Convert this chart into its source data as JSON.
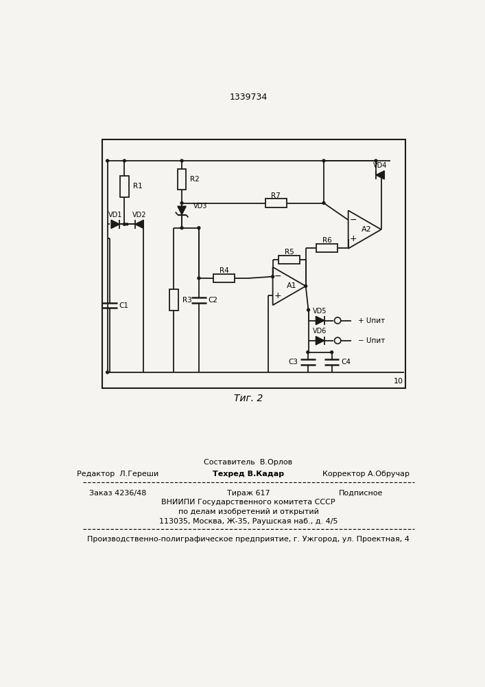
{
  "patent_number": "1339734",
  "fig_label": "Τиг. 2",
  "page_number": "10",
  "bg_color": "#f5f4f0",
  "box_color": "#1a1a1a",
  "line_color": "#1a1a1a",
  "editor_line": "Редактор  Л.Гереши",
  "composer_line": "Составитель  В.Орлов",
  "techred_line": "Техред В.Кадар",
  "corrector_line": "Корректор А.Обручар",
  "order_line": "Заказ 4236/48",
  "tirazh_line": "Тираж 617",
  "podpisnoe_line": "Подписное",
  "vniip1": "ВНИИПИ Государственного комитета СССР",
  "vniip2": "по делам изобретений и открытий",
  "vniip3": "113035, Москва, Ж-35, Раушская наб., д. 4/5",
  "factory": "Производственно-полиграфическое предприятие, г. Ужгород, ул. Проектная, 4"
}
